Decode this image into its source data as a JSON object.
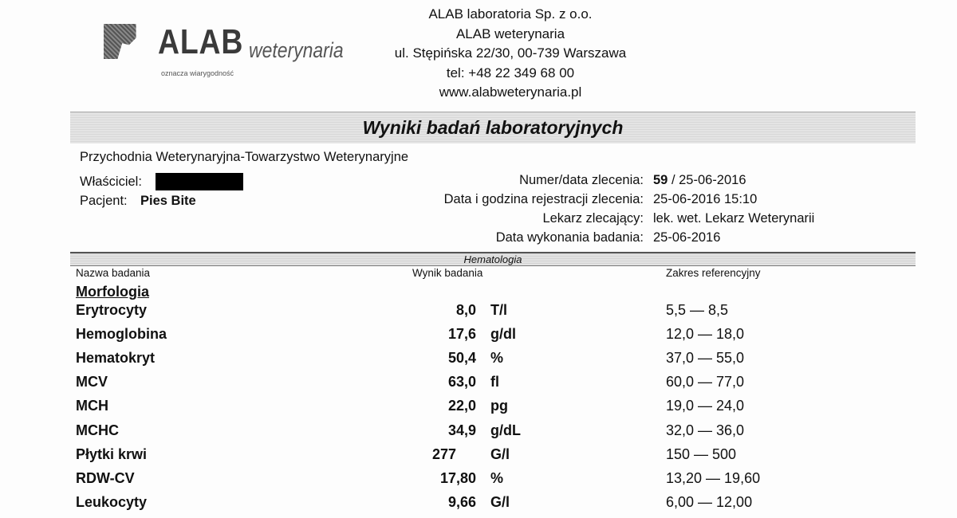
{
  "logo": {
    "brand": "ALAB",
    "sub": "weterynaria",
    "tagline": "oznacza wiarygodność"
  },
  "lab": {
    "lines": [
      "ALAB laboratoria Sp. z o.o.",
      "ALAB weterynaria",
      "ul. Stępińska 22/30, 00-739 Warszawa",
      "tel: +48 22 349 68 00",
      "www.alabweterynaria.pl"
    ]
  },
  "title": "Wyniki badań laboratoryjnych",
  "clinic": "Przychodnia Weterynaryjna-Towarzystwo Weterynaryjne",
  "owner_label": "Właściciel:",
  "patient_label": "Pacjent:",
  "patient": "Pies Bite",
  "order": {
    "number_label": "Numer/data zlecenia:",
    "number": "59",
    "date": " / 25-06-2016",
    "reg_label": "Data i godzina rejestracji zlecenia:",
    "reg": "25-06-2016 15:10",
    "doctor_label": "Lekarz zlecający:",
    "doctor": "lek. wet.  Lekarz Weterynarii",
    "exec_label": "Data wykonania badania:",
    "exec": "25-06-2016"
  },
  "section": "Hematologia",
  "columns": {
    "name": "Nazwa badania",
    "result": "Wynik badania",
    "range": "Zakres referencyjny"
  },
  "group": "Morfologia",
  "rows": [
    {
      "name": "Erytrocyty",
      "value": "8,0",
      "unit": "T/l",
      "range": "5,5 — 8,5"
    },
    {
      "name": "Hemoglobina",
      "value": "17,6",
      "unit": "g/dl",
      "range": "12,0 — 18,0"
    },
    {
      "name": "Hematokryt",
      "value": "50,4",
      "unit": "%",
      "range": "37,0 — 55,0"
    },
    {
      "name": "MCV",
      "value": "63,0",
      "unit": "fl",
      "range": "60,0 — 77,0"
    },
    {
      "name": "MCH",
      "value": "22,0",
      "unit": "pg",
      "range": "19,0 — 24,0"
    },
    {
      "name": "MCHC",
      "value": "34,9",
      "unit": "g/dL",
      "range": "32,0 — 36,0"
    },
    {
      "name": "Płytki krwi",
      "value": "277",
      "unit": "G/l",
      "range": "150 — 500"
    },
    {
      "name": "RDW-CV",
      "value": "17,80",
      "unit": "%",
      "range": "13,20 — 19,60"
    },
    {
      "name": "Leukocyty",
      "value": "9,66",
      "unit": "G/l",
      "range": "6,00 — 12,00"
    }
  ]
}
